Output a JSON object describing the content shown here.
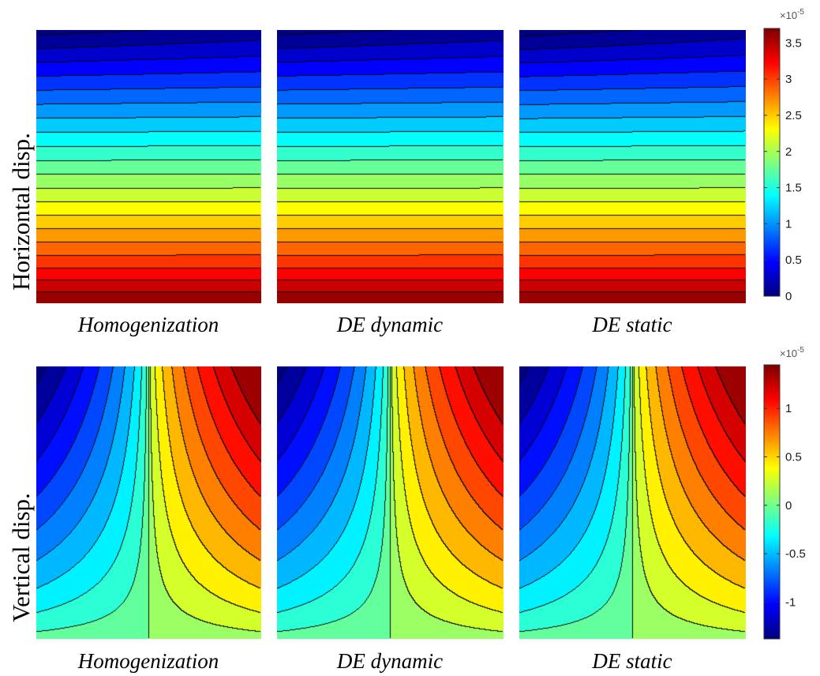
{
  "chart_data": [
    {
      "type": "heatmap",
      "row_label": "Horizontal disp.",
      "field": "horizontal",
      "panels": [
        {
          "label": "Homogenization",
          "skew": 0.9
        },
        {
          "label": "DE dynamic",
          "skew": 0.85
        },
        {
          "label": "DE static",
          "skew": 1.15
        }
      ],
      "colorbar": {
        "multiplier": "×10",
        "exponent": "-5",
        "min": 0,
        "max": 3.7,
        "ticks": [
          0,
          0.5,
          1,
          1.5,
          2,
          2.5,
          3,
          3.5
        ],
        "tick_labels": [
          "0",
          "0.5",
          "1",
          "1.5",
          "2",
          "2.5",
          "3",
          "3.5"
        ]
      },
      "contour_levels": 20,
      "grid": false
    },
    {
      "type": "heatmap",
      "row_label": "Vertical disp.",
      "field": "vertical",
      "panels": [
        {
          "label": "Homogenization",
          "skew": 1.0
        },
        {
          "label": "DE dynamic",
          "skew": 1.0
        },
        {
          "label": "DE static",
          "skew": 1.0
        }
      ],
      "colorbar": {
        "multiplier": "×10",
        "exponent": "-5",
        "min": -1.38,
        "max": 1.45,
        "ticks": [
          -1,
          -0.5,
          0,
          0.5,
          1
        ],
        "tick_labels": [
          "-1",
          "-0.5",
          "0",
          "0.5",
          "1"
        ]
      },
      "contour_levels": 18,
      "grid": false
    }
  ]
}
